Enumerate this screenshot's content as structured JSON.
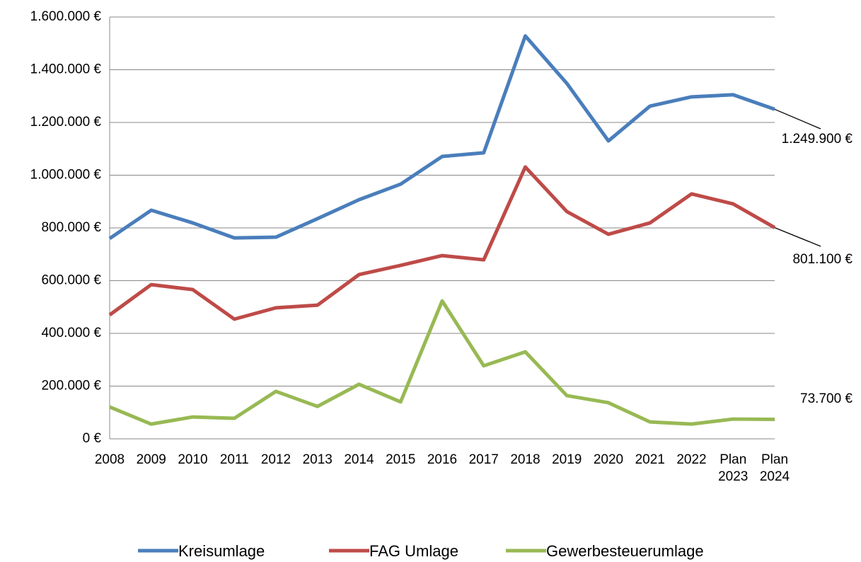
{
  "chart_data": {
    "type": "line",
    "categories": [
      "2008",
      "2009",
      "2010",
      "2011",
      "2012",
      "2013",
      "2014",
      "2015",
      "2016",
      "2017",
      "2018",
      "2019",
      "2020",
      "2021",
      "2022",
      "Plan 2023",
      "Plan 2024"
    ],
    "series": [
      {
        "name": "Kreisumlage",
        "color": "#4a7ebb",
        "values": [
          760000,
          867000,
          819000,
          762000,
          765000,
          835000,
          907000,
          966000,
          1071000,
          1085000,
          1528000,
          1348000,
          1130000,
          1262000,
          1297000,
          1305000,
          1249900
        ],
        "value_labels": [
          null,
          null,
          null,
          null,
          null,
          null,
          null,
          null,
          null,
          null,
          null,
          null,
          null,
          null,
          null,
          null,
          "1.249.900 €"
        ]
      },
      {
        "name": "FAG Umlage",
        "color": "#be4b48",
        "values": [
          470000,
          585000,
          566000,
          454000,
          497000,
          507000,
          623000,
          658000,
          695000,
          679000,
          1031000,
          862000,
          776000,
          819000,
          929000,
          891000,
          801100
        ],
        "value_labels": [
          null,
          null,
          null,
          null,
          null,
          null,
          null,
          null,
          null,
          null,
          null,
          null,
          null,
          null,
          null,
          null,
          "801.100 €"
        ]
      },
      {
        "name": "Gewerbesteuerumlage",
        "color": "#98b954",
        "values": [
          121000,
          56000,
          83000,
          78000,
          180000,
          123000,
          207000,
          140000,
          523000,
          277000,
          330000,
          164000,
          137000,
          64000,
          56000,
          75000,
          73700
        ],
        "value_labels": [
          null,
          null,
          null,
          null,
          null,
          null,
          null,
          null,
          null,
          null,
          null,
          null,
          null,
          null,
          null,
          null,
          "73.700 €"
        ]
      }
    ],
    "ylim": [
      0,
      1600000
    ],
    "yticks": [
      {
        "value": 0,
        "label": "0 €"
      },
      {
        "value": 200000,
        "label": "200.000 €"
      },
      {
        "value": 400000,
        "label": "400.000 €"
      },
      {
        "value": 600000,
        "label": "600.000 €"
      },
      {
        "value": 800000,
        "label": "800.000 €"
      },
      {
        "value": 1000000,
        "label": "1.000.000 €"
      },
      {
        "value": 1200000,
        "label": "1.200.000 €"
      },
      {
        "value": 1400000,
        "label": "1.400.000 €"
      },
      {
        "value": 1600000,
        "label": "1.600.000 €"
      }
    ],
    "grid": true,
    "legend": "bottom"
  }
}
